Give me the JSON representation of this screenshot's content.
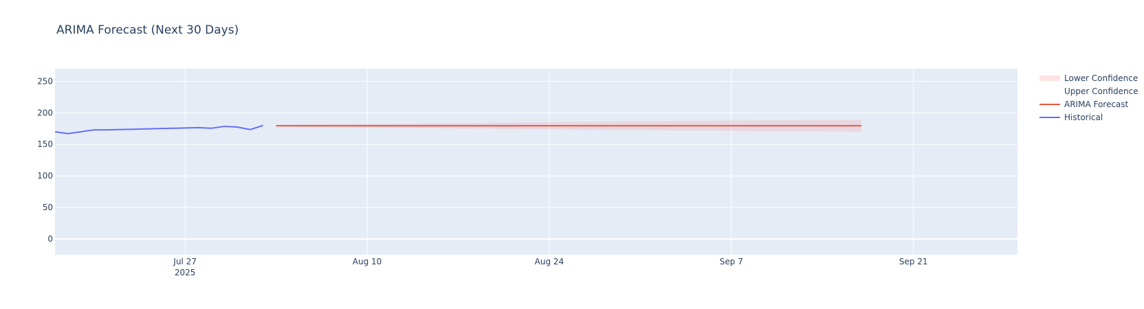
{
  "chart_data": {
    "type": "line",
    "title": "ARIMA Forecast (Next 30 Days)",
    "xlabel": "",
    "ylabel": "",
    "x_range": [
      "2025-07-17",
      "2025-09-29"
    ],
    "ylim": [
      -25,
      270
    ],
    "y_ticks": [
      0,
      50,
      100,
      150,
      200,
      250
    ],
    "x_ticks": [
      {
        "date": "2025-07-27",
        "label": "Jul 27",
        "sublabel": "2025"
      },
      {
        "date": "2025-08-10",
        "label": "Aug 10",
        "sublabel": ""
      },
      {
        "date": "2025-08-24",
        "label": "Aug 24",
        "sublabel": ""
      },
      {
        "date": "2025-09-07",
        "label": "Sep 7",
        "sublabel": ""
      },
      {
        "date": "2025-09-21",
        "label": "Sep 21",
        "sublabel": ""
      }
    ],
    "grid": true,
    "plot_bgcolor": "#E5ECF6",
    "legend_position": "top-right",
    "series": [
      {
        "name": "Lower Confidence",
        "kind": "band-lower",
        "color": "#FFE4E4",
        "x": [
          "2025-08-03",
          "2025-08-18",
          "2025-09-02",
          "2025-09-17"
        ],
        "y": [
          178,
          175,
          172,
          170
        ]
      },
      {
        "name": "Upper Confidence",
        "kind": "band-upper",
        "color": "rgba(0,0,0,0)",
        "x": [
          "2025-08-03",
          "2025-08-18",
          "2025-09-02",
          "2025-09-17"
        ],
        "y": [
          181,
          184,
          187,
          189
        ]
      },
      {
        "name": "ARIMA Forecast",
        "kind": "line",
        "color": "#EF553B",
        "x": [
          "2025-08-03",
          "2025-09-17"
        ],
        "y": [
          179.5,
          179.5
        ]
      },
      {
        "name": "Historical",
        "kind": "line",
        "color": "#636EFA",
        "x": [
          "2025-07-17",
          "2025-07-18",
          "2025-07-20",
          "2025-07-21",
          "2025-07-22",
          "2025-07-23",
          "2025-07-24",
          "2025-07-25",
          "2025-07-26",
          "2025-07-27",
          "2025-07-28",
          "2025-07-29",
          "2025-07-30",
          "2025-07-31",
          "2025-08-01",
          "2025-08-02"
        ],
        "y": [
          170,
          167,
          173,
          173,
          173.5,
          174,
          174.5,
          175,
          175.5,
          176,
          176.5,
          175.5,
          178.5,
          177.5,
          173.5,
          180
        ]
      }
    ]
  }
}
